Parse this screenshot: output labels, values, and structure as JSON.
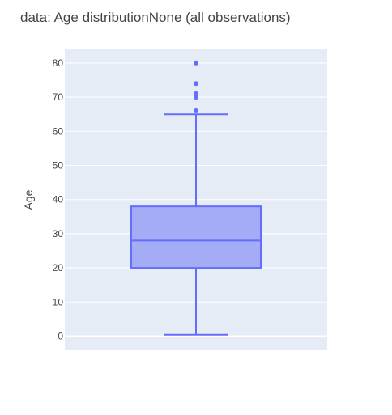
{
  "chart_data": {
    "type": "box",
    "title": "data: Age distributionNone (all observations)",
    "xlabel": "",
    "ylabel": "Age",
    "ylim": [
      -4,
      84
    ],
    "yticks": [
      0,
      10,
      20,
      30,
      40,
      50,
      60,
      70,
      80
    ],
    "grid": true,
    "legend": "none",
    "series": [
      {
        "stats": {
          "min": 0.42,
          "q1": 20,
          "median": 28,
          "q3": 38,
          "upper_fence": 65
        },
        "outliers": [
          66,
          70,
          70.5,
          71,
          74,
          80
        ]
      }
    ],
    "colors": {
      "box_line": "#636efa",
      "box_fill": "#a5acf6",
      "plot_bg": "#e5ecf6",
      "grid": "#ffffff",
      "text": "#444444"
    }
  }
}
